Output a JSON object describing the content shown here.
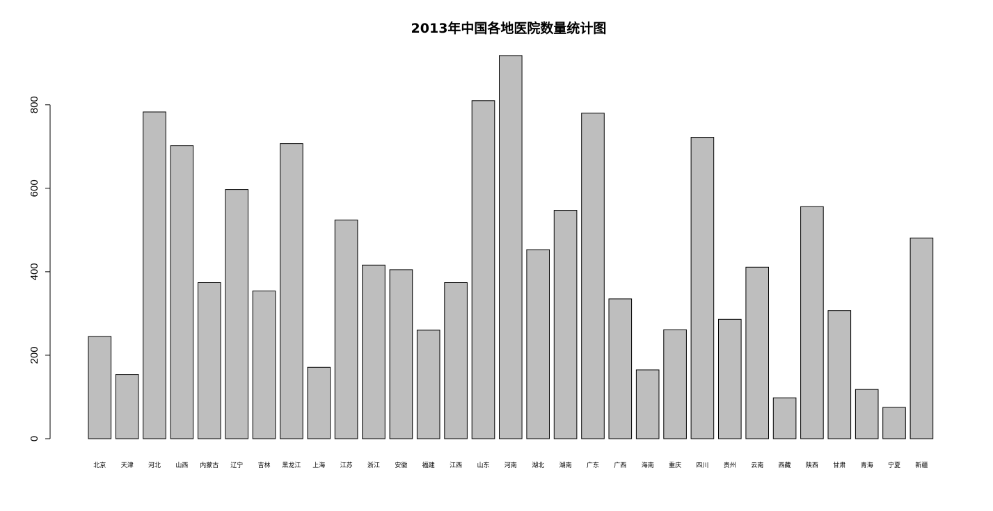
{
  "chart_data": {
    "type": "bar",
    "title": "2013年中国各地医院数量统计图",
    "xlabel": "",
    "ylabel": "",
    "ylim": [
      0,
      920
    ],
    "yticks": [
      0,
      200,
      400,
      600,
      800
    ],
    "grid": false,
    "bar_color": "#bebebe",
    "border_color": "#000000",
    "categories": [
      "北京",
      "天津",
      "河北",
      "山西",
      "内蒙古",
      "辽宁",
      "吉林",
      "黑龙江",
      "上海",
      "江苏",
      "浙江",
      "安徽",
      "福建",
      "江西",
      "山东",
      "河南",
      "湖北",
      "湖南",
      "广东",
      "广西",
      "海南",
      "重庆",
      "四川",
      "贵州",
      "云南",
      "西藏",
      "陕西",
      "甘肃",
      "青海",
      "宁夏",
      "新疆"
    ],
    "values": [
      245,
      154,
      783,
      702,
      374,
      597,
      354,
      707,
      171,
      524,
      416,
      405,
      260,
      374,
      810,
      918,
      453,
      547,
      780,
      335,
      165,
      261,
      722,
      286,
      411,
      98,
      556,
      307,
      118,
      75,
      481
    ]
  }
}
